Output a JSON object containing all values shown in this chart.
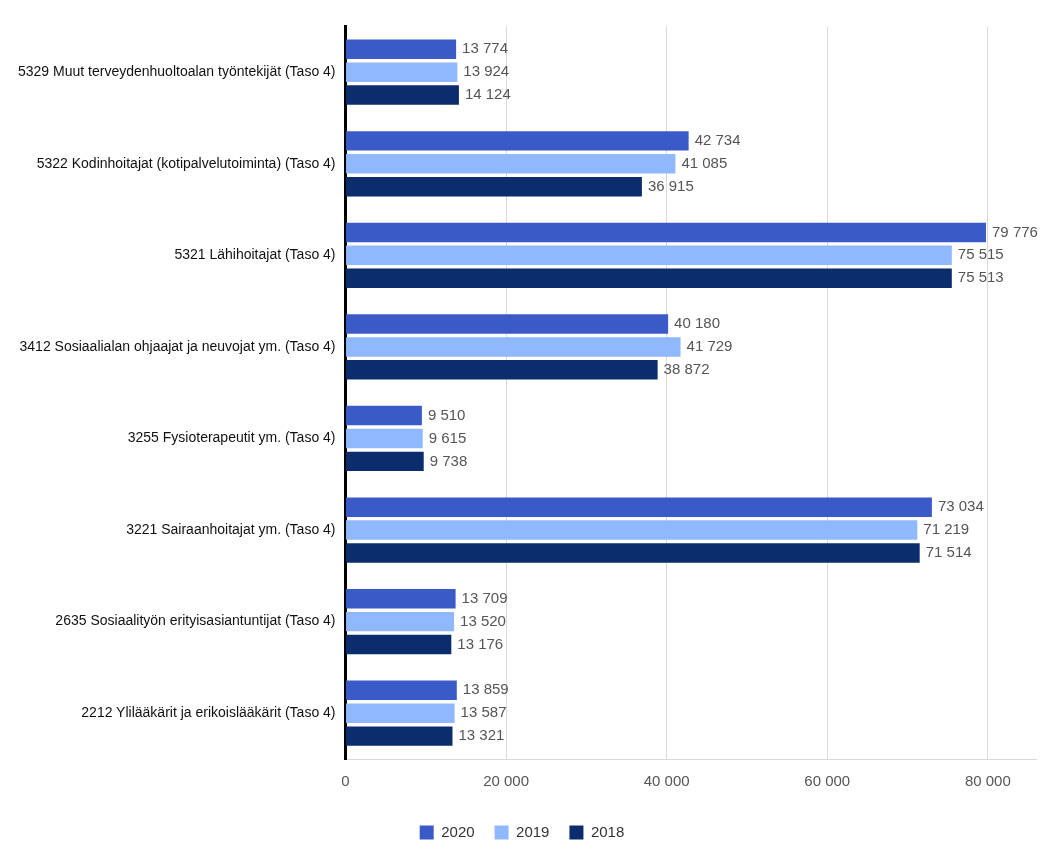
{
  "chart_data": {
    "type": "bar",
    "orientation": "horizontal",
    "categories": [
      "5329 Muut terveydenhuoltoalan työntekijät (Taso 4)",
      "5322 Kodinhoitajat (kotipalvelutoiminta) (Taso 4)",
      "5321 Lähihoitajat (Taso 4)",
      "3412 Sosiaalialan ohjaajat ja neuvojat ym. (Taso 4)",
      "3255 Fysioterapeutit ym. (Taso 4)",
      "3221 Sairaanhoitajat ym. (Taso 4)",
      "2635 Sosiaalityön erityisasiantuntijat (Taso 4)",
      "2212 Ylilääkärit ja erikoislääkärit (Taso 4)"
    ],
    "series": [
      {
        "name": "2020",
        "color": "#3a5bc7",
        "values": [
          13774,
          42734,
          79776,
          40180,
          9510,
          73034,
          13709,
          13859
        ],
        "value_labels": [
          "13 774",
          "42 734",
          "79 776",
          "40 180",
          "9 510",
          "73 034",
          "13 709",
          "13 859"
        ]
      },
      {
        "name": "2019",
        "color": "#8fb8ff",
        "values": [
          13924,
          41085,
          75515,
          41729,
          9615,
          71219,
          13520,
          13587
        ],
        "value_labels": [
          "13 924",
          "41 085",
          "75 515",
          "41 729",
          "9 615",
          "71 219",
          "13 520",
          "13 587"
        ]
      },
      {
        "name": "2018",
        "color": "#0b2d6b",
        "values": [
          14124,
          36915,
          75513,
          38872,
          9738,
          71514,
          13176,
          13321
        ],
        "value_labels": [
          "14 124",
          "36 915",
          "75 513",
          "38 872",
          "9 738",
          "71 514",
          "13 176",
          "13 321"
        ]
      }
    ],
    "xlim": [
      0,
      86000
    ],
    "xticks": [
      0,
      {
        "value": 20000,
        "label": "20 000"
      },
      {
        "value": 40000,
        "label": "40 000"
      },
      {
        "value": 60000,
        "label": "60 000"
      },
      {
        "value": 80000,
        "label": "80 000"
      }
    ],
    "grid": "x",
    "legend": "bottom"
  }
}
